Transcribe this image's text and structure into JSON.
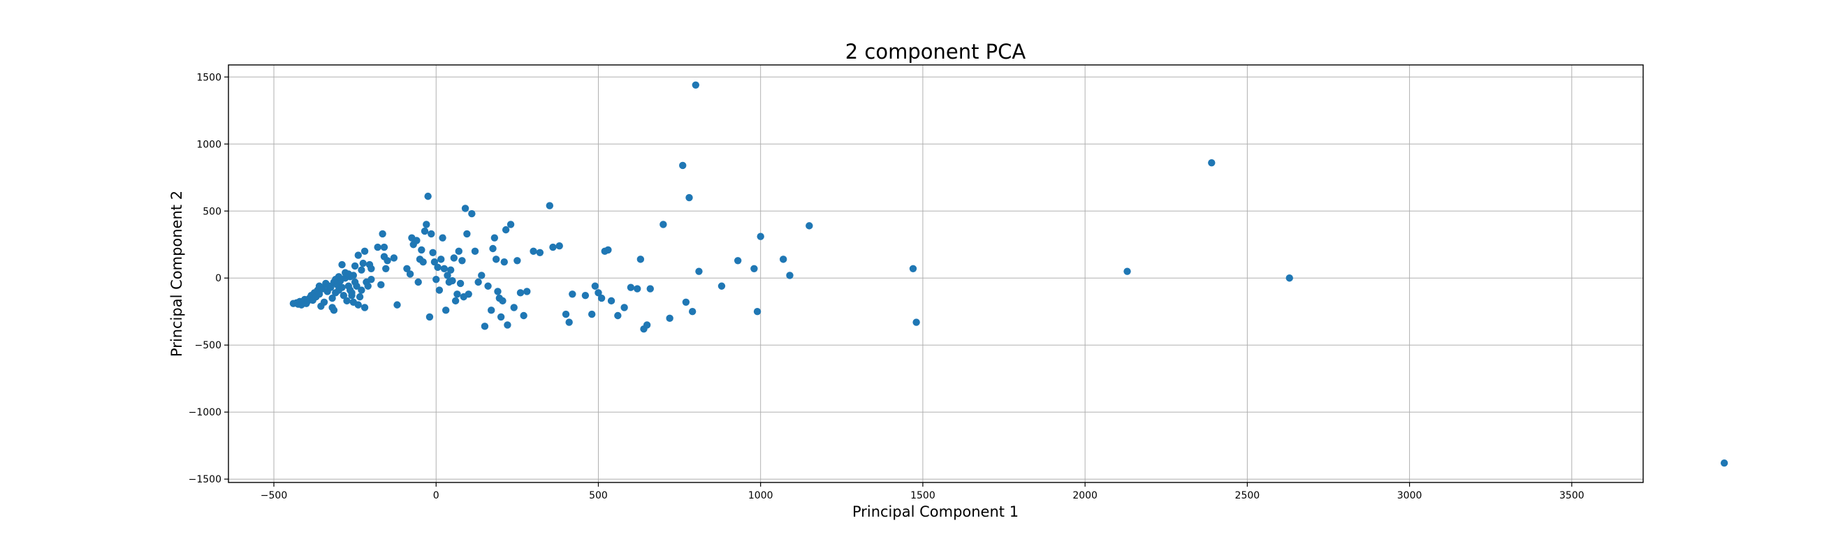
{
  "chart_data": {
    "type": "scatter",
    "title": "2 component PCA",
    "xlabel": "Principal Component 1",
    "ylabel": "Principal Component 2",
    "xlim": [
      -640,
      3720
    ],
    "ylim": [
      -1525,
      1590
    ],
    "xticks": [
      -500,
      0,
      500,
      1000,
      1500,
      2000,
      2500,
      3000,
      3500
    ],
    "yticks": [
      -1500,
      -1000,
      -500,
      0,
      500,
      1000,
      1500
    ],
    "xtick_labels": [
      "−500",
      "0",
      "500",
      "1000",
      "1500",
      "2000",
      "2500",
      "3000",
      "3500"
    ],
    "ytick_labels": [
      "−1500",
      "−1000",
      "−500",
      "0",
      "500",
      "1000",
      "1500"
    ],
    "grid": true,
    "marker_color": "#1f77b4",
    "series": [
      {
        "points": [
          [
            -440,
            -190
          ],
          [
            -430,
            -185
          ],
          [
            -425,
            -195
          ],
          [
            -420,
            -175
          ],
          [
            -415,
            -200
          ],
          [
            -410,
            -180
          ],
          [
            -405,
            -160
          ],
          [
            -400,
            -190
          ],
          [
            -395,
            -170
          ],
          [
            -390,
            -150
          ],
          [
            -385,
            -130
          ],
          [
            -380,
            -165
          ],
          [
            -375,
            -110
          ],
          [
            -370,
            -140
          ],
          [
            -365,
            -90
          ],
          [
            -360,
            -120
          ],
          [
            -360,
            -60
          ],
          [
            -355,
            -210
          ],
          [
            -350,
            -80
          ],
          [
            -345,
            -180
          ],
          [
            -340,
            -40
          ],
          [
            -335,
            -100
          ],
          [
            -330,
            -60
          ],
          [
            -325,
            -70
          ],
          [
            -320,
            -150
          ],
          [
            -315,
            -30
          ],
          [
            -310,
            -110
          ],
          [
            -305,
            -50
          ],
          [
            -300,
            -90
          ],
          [
            -300,
            -40
          ],
          [
            -295,
            -20
          ],
          [
            -290,
            -70
          ],
          [
            -285,
            -130
          ],
          [
            -280,
            0
          ],
          [
            -275,
            -170
          ],
          [
            -270,
            -60
          ],
          [
            -265,
            10
          ],
          [
            -260,
            -110
          ],
          [
            -255,
            20
          ],
          [
            -250,
            -30
          ],
          [
            -320,
            -220
          ],
          [
            -315,
            -240
          ],
          [
            -310,
            -10
          ],
          [
            -300,
            10
          ],
          [
            -290,
            100
          ],
          [
            -280,
            40
          ],
          [
            -270,
            30
          ],
          [
            -265,
            -90
          ],
          [
            -260,
            -130
          ],
          [
            -255,
            -180
          ],
          [
            -250,
            90
          ],
          [
            -245,
            -60
          ],
          [
            -240,
            170
          ],
          [
            -240,
            -200
          ],
          [
            -235,
            -140
          ],
          [
            -230,
            60
          ],
          [
            -230,
            -90
          ],
          [
            -225,
            110
          ],
          [
            -220,
            200
          ],
          [
            -220,
            -220
          ],
          [
            -215,
            -30
          ],
          [
            -210,
            -60
          ],
          [
            -205,
            100
          ],
          [
            -200,
            70
          ],
          [
            -200,
            -10
          ],
          [
            -180,
            230
          ],
          [
            -170,
            -50
          ],
          [
            -165,
            330
          ],
          [
            -160,
            230
          ],
          [
            -160,
            160
          ],
          [
            -155,
            70
          ],
          [
            -150,
            130
          ],
          [
            -130,
            150
          ],
          [
            -120,
            -200
          ],
          [
            -90,
            70
          ],
          [
            -80,
            30
          ],
          [
            -75,
            300
          ],
          [
            -70,
            250
          ],
          [
            -60,
            280
          ],
          [
            -55,
            -30
          ],
          [
            -50,
            140
          ],
          [
            -45,
            210
          ],
          [
            -40,
            120
          ],
          [
            -35,
            350
          ],
          [
            -30,
            400
          ],
          [
            -25,
            610
          ],
          [
            -20,
            -290
          ],
          [
            -15,
            330
          ],
          [
            -10,
            190
          ],
          [
            -5,
            120
          ],
          [
            0,
            -10
          ],
          [
            5,
            80
          ],
          [
            10,
            -90
          ],
          [
            15,
            140
          ],
          [
            20,
            300
          ],
          [
            25,
            70
          ],
          [
            30,
            -240
          ],
          [
            35,
            20
          ],
          [
            40,
            -30
          ],
          [
            45,
            60
          ],
          [
            50,
            -20
          ],
          [
            55,
            150
          ],
          [
            60,
            -170
          ],
          [
            65,
            -120
          ],
          [
            70,
            200
          ],
          [
            75,
            -40
          ],
          [
            80,
            130
          ],
          [
            85,
            -140
          ],
          [
            90,
            520
          ],
          [
            95,
            330
          ],
          [
            100,
            -120
          ],
          [
            110,
            480
          ],
          [
            120,
            200
          ],
          [
            130,
            -30
          ],
          [
            140,
            20
          ],
          [
            150,
            -360
          ],
          [
            160,
            -60
          ],
          [
            170,
            -240
          ],
          [
            175,
            220
          ],
          [
            180,
            300
          ],
          [
            185,
            140
          ],
          [
            190,
            -100
          ],
          [
            195,
            -150
          ],
          [
            200,
            -290
          ],
          [
            205,
            -170
          ],
          [
            210,
            120
          ],
          [
            215,
            360
          ],
          [
            220,
            -350
          ],
          [
            230,
            400
          ],
          [
            240,
            -220
          ],
          [
            250,
            130
          ],
          [
            260,
            -110
          ],
          [
            270,
            -280
          ],
          [
            280,
            -100
          ],
          [
            300,
            200
          ],
          [
            320,
            190
          ],
          [
            350,
            540
          ],
          [
            360,
            230
          ],
          [
            380,
            240
          ],
          [
            400,
            -270
          ],
          [
            410,
            -330
          ],
          [
            420,
            -120
          ],
          [
            460,
            -130
          ],
          [
            480,
            -270
          ],
          [
            490,
            -60
          ],
          [
            500,
            -110
          ],
          [
            510,
            -150
          ],
          [
            520,
            200
          ],
          [
            530,
            210
          ],
          [
            540,
            -170
          ],
          [
            560,
            -280
          ],
          [
            580,
            -220
          ],
          [
            600,
            -70
          ],
          [
            620,
            -80
          ],
          [
            630,
            140
          ],
          [
            640,
            -380
          ],
          [
            650,
            -350
          ],
          [
            660,
            -80
          ],
          [
            700,
            400
          ],
          [
            720,
            -300
          ],
          [
            760,
            840
          ],
          [
            770,
            -180
          ],
          [
            780,
            600
          ],
          [
            790,
            -250
          ],
          [
            800,
            1440
          ],
          [
            810,
            50
          ],
          [
            880,
            -60
          ],
          [
            930,
            130
          ],
          [
            980,
            70
          ],
          [
            990,
            -250
          ],
          [
            1000,
            310
          ],
          [
            1070,
            140
          ],
          [
            1090,
            20
          ],
          [
            1150,
            390
          ],
          [
            1470,
            70
          ],
          [
            1480,
            -330
          ],
          [
            2130,
            50
          ],
          [
            2390,
            860
          ],
          [
            2630,
            0
          ],
          [
            3970,
            -1380
          ]
        ]
      }
    ]
  }
}
